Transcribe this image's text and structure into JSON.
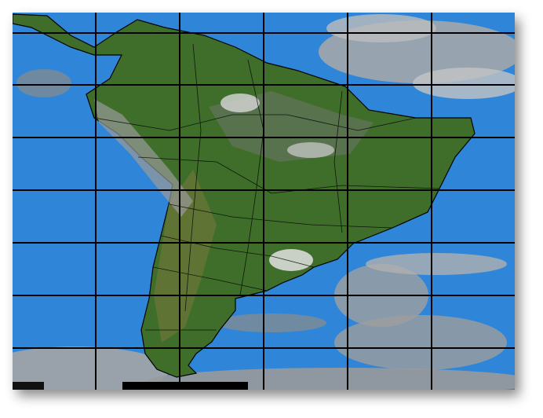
{
  "map": {
    "kind": "satellite composite",
    "region": "South America",
    "colors": {
      "ocean": "#2f86d8",
      "land": "#3f6e2a",
      "land_dry": "#6f7a3a",
      "clouds": "#b8b8b8",
      "borders": "#000000",
      "grid": "#000000"
    },
    "grid": "on"
  }
}
